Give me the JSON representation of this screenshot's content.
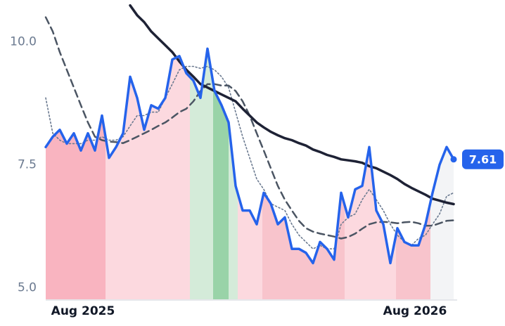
{
  "chart_data": {
    "type": "line",
    "xlim": [
      0,
      58
    ],
    "xticks": [
      {
        "value": 5.3,
        "label": "Aug 2025"
      },
      {
        "value": 52.5,
        "label": "Aug 2026"
      }
    ],
    "ylim": [
      4.75,
      10.85
    ],
    "yticks": [
      {
        "value": 5,
        "label": "5.0"
      },
      7.5,
      {
        "value": 10,
        "label": "10.0"
      }
    ],
    "grid": false,
    "bands": [
      {
        "start": 0,
        "end": 8.5,
        "color": "#f9b4c0"
      },
      {
        "start": 8.5,
        "end": 20.5,
        "color": "#fcd9df"
      },
      {
        "start": 20.5,
        "end": 23.8,
        "color": "#d4ebd9"
      },
      {
        "start": 23.8,
        "end": 26,
        "color": "#99d3a8"
      },
      {
        "start": 26,
        "end": 27.3,
        "color": "#d4ebd9"
      },
      {
        "start": 27.3,
        "end": 30.8,
        "color": "#fcd9df"
      },
      {
        "start": 30.8,
        "end": 42.5,
        "color": "#f8c4cc"
      },
      {
        "start": 42.5,
        "end": 49.8,
        "color": "#fcd9df"
      },
      {
        "start": 49.8,
        "end": 54.7,
        "color": "#f8c4cc"
      },
      {
        "start": 54.7,
        "end": 58,
        "color": "#f3f4f6"
      }
    ],
    "series": [
      {
        "color": "#2563eb",
        "dash": "solid",
        "width": 3.5,
        "values": [
          7.86,
          8.07,
          8.21,
          7.93,
          8.14,
          7.79,
          8.14,
          7.79,
          8.5,
          7.64,
          7.86,
          8.14,
          9.29,
          8.86,
          8.21,
          8.71,
          8.64,
          8.86,
          9.64,
          9.71,
          9.36,
          9.21,
          8.86,
          9.86,
          9,
          8.71,
          8.36,
          7.07,
          6.57,
          6.57,
          6.29,
          6.93,
          6.71,
          6.29,
          6.43,
          5.79,
          5.79,
          5.71,
          5.5,
          5.93,
          5.79,
          5.57,
          6.93,
          6.43,
          7,
          7.07,
          7.86,
          6.57,
          6.29,
          5.5,
          6.21,
          5.93,
          5.86,
          5.86,
          6.29,
          6.93,
          7.5,
          7.86,
          7.61
        ]
      },
      {
        "color": "#1e2235",
        "dash": "solid",
        "width": 3.5,
        "values": [
          null,
          null,
          null,
          null,
          null,
          null,
          null,
          null,
          null,
          null,
          null,
          null,
          10.74,
          10.54,
          10.4,
          10.21,
          10.07,
          9.93,
          9.79,
          9.6,
          9.43,
          9.29,
          9.14,
          9.07,
          9,
          8.93,
          8.86,
          8.79,
          8.64,
          8.5,
          8.36,
          8.26,
          8.17,
          8.1,
          8.04,
          8,
          7.94,
          7.89,
          7.81,
          7.76,
          7.7,
          7.66,
          7.61,
          7.59,
          7.57,
          7.54,
          7.47,
          7.43,
          7.36,
          7.29,
          7.21,
          7.11,
          7.03,
          6.96,
          6.89,
          6.81,
          6.77,
          6.73,
          6.7
        ]
      },
      {
        "color": "#4b5563",
        "dash": "dashed",
        "width": 2.5,
        "values": [
          10.5,
          10.21,
          9.79,
          9.43,
          9.07,
          8.71,
          8.36,
          8.07,
          8,
          7.97,
          7.96,
          7.94,
          8,
          8.07,
          8.14,
          8.21,
          8.29,
          8.36,
          8.46,
          8.57,
          8.64,
          8.79,
          9,
          9.14,
          9.14,
          9.11,
          9.11,
          9,
          8.79,
          8.5,
          8.14,
          7.79,
          7.43,
          7.07,
          6.79,
          6.57,
          6.36,
          6.21,
          6.14,
          6.1,
          6.07,
          6.04,
          6,
          6.03,
          6.1,
          6.2,
          6.29,
          6.33,
          6.34,
          6.33,
          6.31,
          6.33,
          6.34,
          6.31,
          6.26,
          6.26,
          6.31,
          6.36,
          6.37
        ]
      },
      {
        "color": "#6b7a90",
        "dash": "dotted",
        "width": 1.6,
        "values": [
          8.86,
          8.14,
          8,
          7.93,
          7.93,
          7.93,
          8,
          8,
          8.07,
          8,
          8,
          8.07,
          8.29,
          8.5,
          8.5,
          8.57,
          8.57,
          8.86,
          9.14,
          9.43,
          9.5,
          9.5,
          9.46,
          9.5,
          9.43,
          9.29,
          9.07,
          8.57,
          8.07,
          7.64,
          7.21,
          7,
          6.71,
          6.64,
          6.57,
          6.29,
          6.07,
          5.93,
          5.79,
          5.86,
          5.79,
          5.79,
          6.29,
          6.43,
          6.5,
          6.79,
          7,
          6.79,
          6.57,
          6.29,
          6.07,
          5.93,
          5.86,
          6,
          6.07,
          6.29,
          6.5,
          6.86,
          6.93
        ]
      }
    ]
  }
}
